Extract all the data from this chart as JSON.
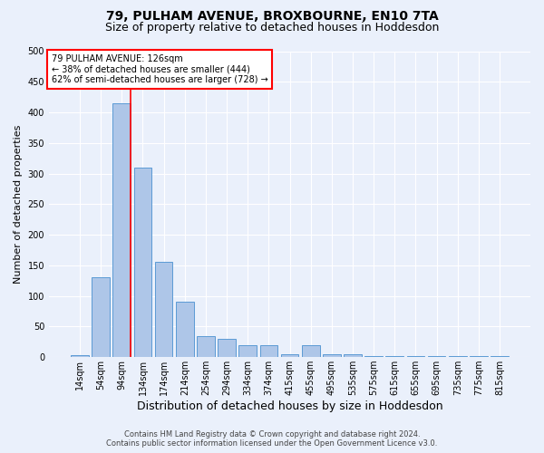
{
  "title": "79, PULHAM AVENUE, BROXBOURNE, EN10 7TA",
  "subtitle": "Size of property relative to detached houses in Hoddesdon",
  "xlabel": "Distribution of detached houses by size in Hoddesdon",
  "ylabel": "Number of detached properties",
  "categories": [
    "14sqm",
    "54sqm",
    "94sqm",
    "134sqm",
    "174sqm",
    "214sqm",
    "254sqm",
    "294sqm",
    "334sqm",
    "374sqm",
    "415sqm",
    "455sqm",
    "495sqm",
    "535sqm",
    "575sqm",
    "615sqm",
    "655sqm",
    "695sqm",
    "735sqm",
    "775sqm",
    "815sqm"
  ],
  "values": [
    3,
    130,
    415,
    310,
    155,
    90,
    35,
    30,
    20,
    20,
    5,
    20,
    5,
    5,
    2,
    2,
    1,
    1,
    1,
    1,
    2
  ],
  "bar_color": "#aec6e8",
  "bar_edge_color": "#5b9bd5",
  "property_bin_index": 2,
  "redline_label": "79 PULHAM AVENUE: 126sqm",
  "annotation_line1": "← 38% of detached houses are smaller (444)",
  "annotation_line2": "62% of semi-detached houses are larger (728) →",
  "footer1": "Contains HM Land Registry data © Crown copyright and database right 2024.",
  "footer2": "Contains public sector information licensed under the Open Government Licence v3.0.",
  "ylim": [
    0,
    500
  ],
  "yticks": [
    0,
    50,
    100,
    150,
    200,
    250,
    300,
    350,
    400,
    450,
    500
  ],
  "background_color": "#eaf0fb",
  "plot_bg_color": "#eaf0fb",
  "title_fontsize": 10,
  "subtitle_fontsize": 9,
  "axis_label_fontsize": 8,
  "tick_fontsize": 7,
  "annotation_box_color": "white",
  "annotation_box_edge": "red",
  "redline_color": "red",
  "footer_fontsize": 6,
  "grid_color": "#ffffff"
}
